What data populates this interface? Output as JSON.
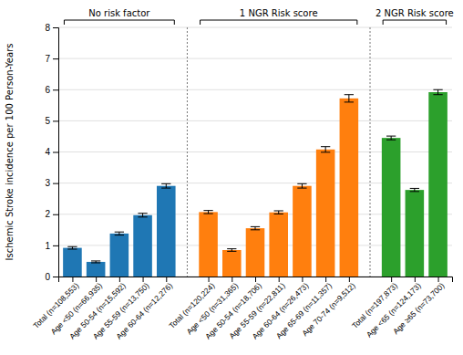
{
  "chart_data": {
    "type": "bar",
    "ylabel": "Ischemic Stroke incidence per 100 Person-Years",
    "groups": [
      {
        "label": "No risk factor",
        "categories": [
          "Total (n=108,553)",
          "Age <50 (n=66,935)",
          "Age 50-54 (n=15,592)",
          "Age 55-59 (n=13,750)",
          "Age 60-64 (n=12,276)"
        ],
        "values": [
          0.92,
          0.47,
          1.38,
          1.97,
          2.91
        ],
        "errors": [
          0.04,
          0.03,
          0.05,
          0.06,
          0.07
        ]
      },
      {
        "label": "1 NGR Risk score",
        "categories": [
          "Total (n=120,224)",
          "Age <50 (n=31,365)",
          "Age 50-54 (n=18,706)",
          "Age 55-59 (n=22,811)",
          "Age 60-64 (n=26,473)",
          "Age 65-69 (n=11,357)",
          "Age 70-74 (n=9,512)"
        ],
        "values": [
          2.07,
          0.85,
          1.55,
          2.06,
          2.91,
          4.08,
          5.72
        ],
        "errors": [
          0.05,
          0.04,
          0.05,
          0.05,
          0.07,
          0.09,
          0.12
        ]
      },
      {
        "label": "2 NGR Risk score",
        "categories": [
          "Total (n=197,873)",
          "Age <65 (n=124,173)",
          "Age ≥65 (n=73,700)"
        ],
        "values": [
          4.45,
          2.78,
          5.92
        ],
        "errors": [
          0.06,
          0.05,
          0.08
        ]
      }
    ],
    "ylim": [
      0,
      8
    ],
    "yticks": [
      0,
      1,
      2,
      3,
      4,
      5,
      6,
      7,
      8
    ],
    "grid": true
  }
}
